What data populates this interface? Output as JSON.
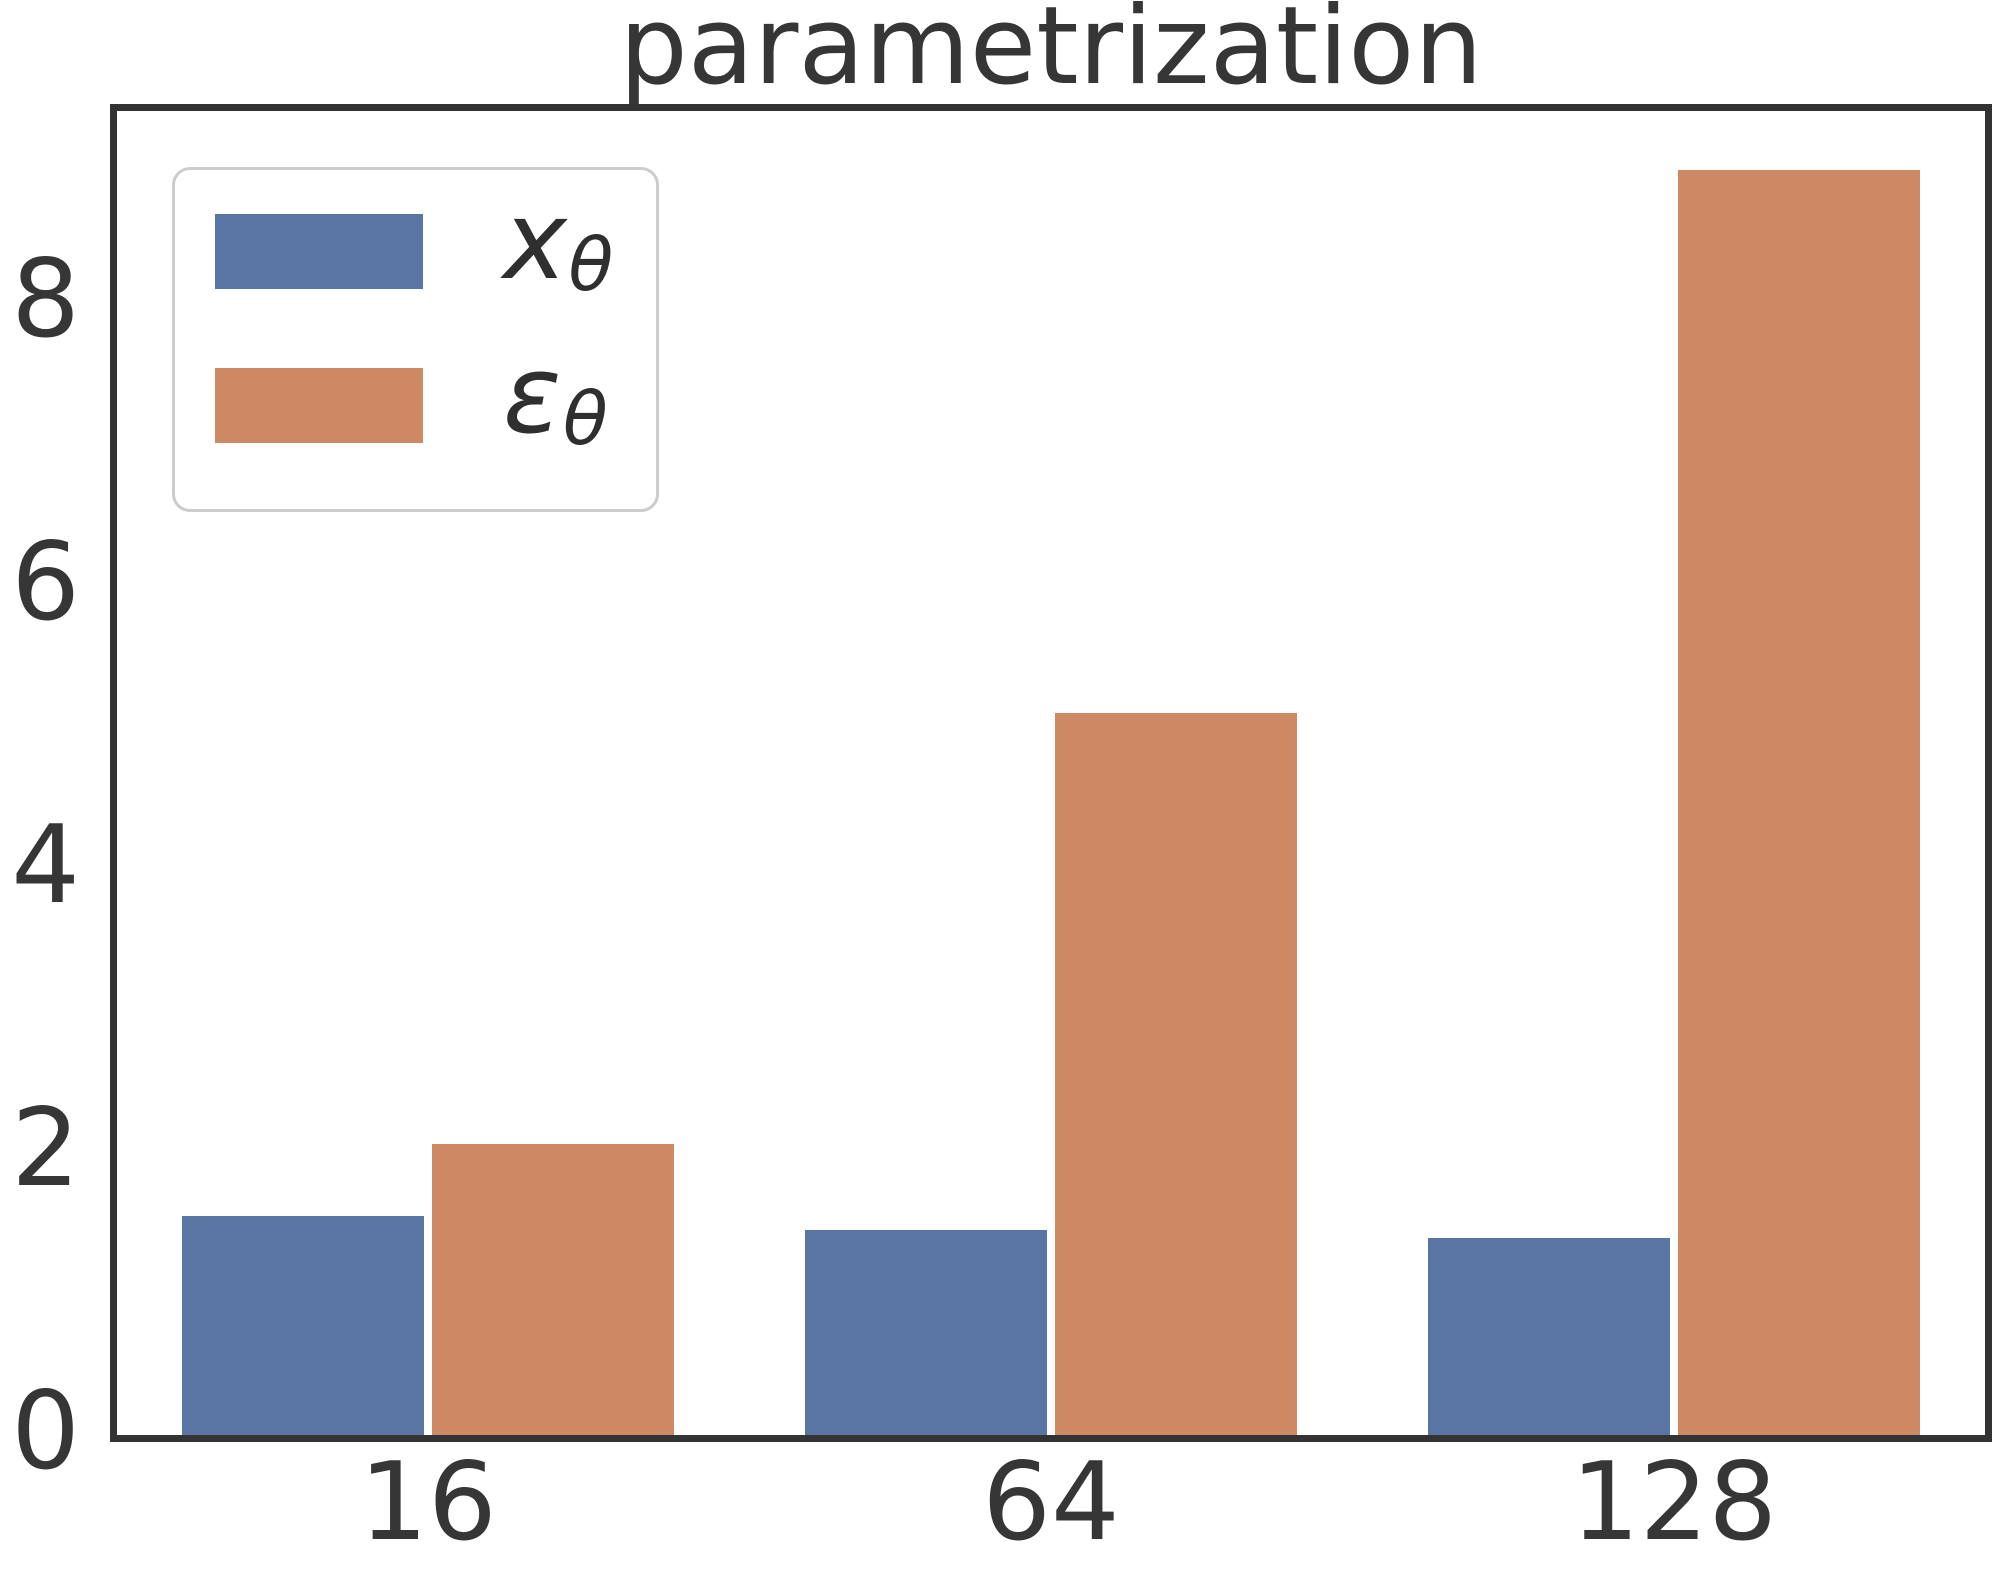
{
  "chart_data": {
    "type": "bar",
    "title": "parametrization",
    "categories": [
      "16",
      "64",
      "128"
    ],
    "series": [
      {
        "name": "x-theta",
        "label_main": "x",
        "label_sub": "θ",
        "color": "#5875A3",
        "values": [
          1.56,
          1.46,
          1.41
        ]
      },
      {
        "name": "epsilon-theta",
        "label_main": "ε",
        "label_sub": "θ",
        "color": "#CC8963",
        "values": [
          2.07,
          5.12,
          8.96
        ]
      }
    ],
    "xlabel": "",
    "ylabel": "",
    "ylim": [
      0,
      9.36
    ],
    "yticks": [
      "0",
      "2",
      "4",
      "6",
      "8"
    ],
    "grid": false,
    "legend_position": "upper left",
    "bar_edge_color": "#ffffff",
    "axis_color": "#333333",
    "text_color": "#363636",
    "legend_border_color": "#cccccc"
  }
}
